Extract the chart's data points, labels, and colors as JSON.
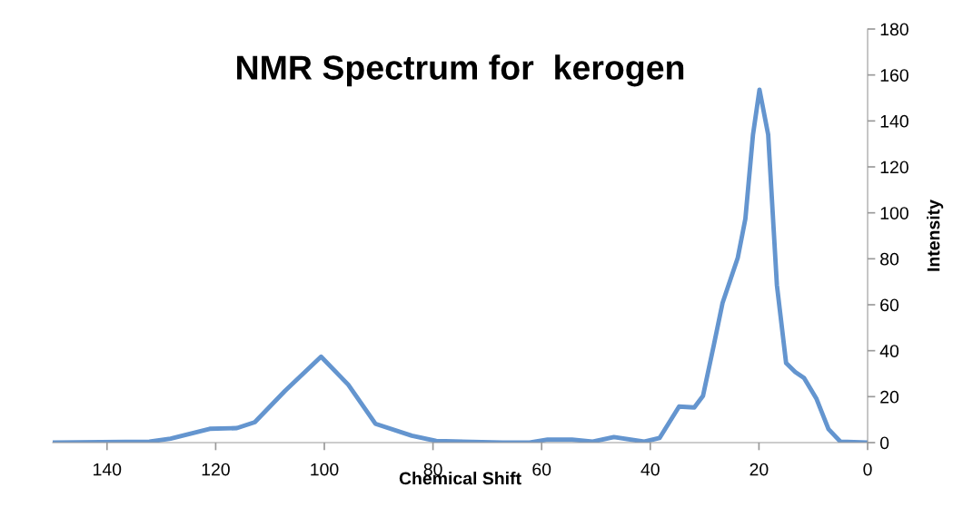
{
  "chart_data": {
    "type": "line",
    "title": "NMR Spectrum for  kerogen",
    "xlabel": "Chemical Shift",
    "ylabel": "Intensity",
    "x": [
      150,
      132.2,
      128.3,
      121.1,
      116.1,
      112.8,
      107.2,
      100.6,
      95.6,
      90.6,
      83.9,
      79.4,
      67.2,
      62.2,
      58.9,
      54.4,
      50.6,
      46.7,
      41.1,
      38.3,
      34.7,
      31.9,
      30.3,
      28.3,
      26.7,
      23.9,
      22.5,
      21.1,
      19.9,
      18.3,
      16.7,
      15.0,
      13.3,
      11.7,
      9.4,
      7.2,
      5.0,
      0
    ],
    "series": [
      {
        "color": "#6495cf",
        "values": [
          0,
          0.4,
          1.7,
          6,
          6.3,
          8.9,
          22.6,
          37.4,
          25.2,
          8.2,
          3,
          0.7,
          0,
          0,
          1.3,
          1.3,
          0.4,
          2.4,
          0.4,
          2,
          15.7,
          15.3,
          20.3,
          42.5,
          60.8,
          80.4,
          97.4,
          134,
          153.6,
          134,
          68.6,
          34.6,
          30.7,
          28.1,
          19,
          5.9,
          0.4,
          0
        ]
      }
    ],
    "xlim": [
      150,
      0
    ],
    "xticks": [
      140,
      120,
      100,
      80,
      60,
      40,
      20,
      0
    ],
    "ylim": [
      0,
      180
    ],
    "yticks": [
      0,
      20,
      40,
      60,
      80,
      100,
      120,
      140,
      160,
      180
    ],
    "grid": false,
    "legend": false,
    "marker": "none",
    "line_style": "solid"
  }
}
